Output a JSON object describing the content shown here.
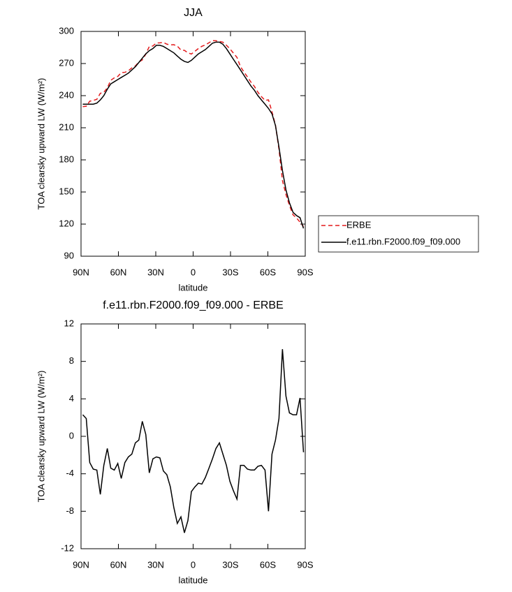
{
  "chart_data": [
    {
      "type": "line",
      "title": "JJA",
      "xlabel": "latitude",
      "ylabel": "TOA clearsky upward LW (W/m²)",
      "x": [
        88.6,
        85.8,
        83.0,
        80.2,
        77.3,
        74.5,
        71.7,
        68.9,
        66.1,
        63.3,
        60.5,
        57.7,
        54.8,
        52.0,
        49.2,
        46.4,
        43.6,
        40.8,
        38.0,
        35.2,
        32.3,
        29.5,
        26.7,
        23.9,
        21.1,
        18.3,
        15.5,
        12.7,
        9.8,
        7.0,
        4.2,
        1.4,
        -1.4,
        -4.2,
        -7.0,
        -9.8,
        -12.7,
        -15.5,
        -18.3,
        -21.1,
        -23.9,
        -26.7,
        -29.5,
        -32.3,
        -35.2,
        -38.0,
        -40.8,
        -43.6,
        -46.4,
        -49.2,
        -52.0,
        -54.8,
        -57.7,
        -60.5,
        -63.3,
        -66.1,
        -68.9,
        -71.7,
        -74.5,
        -77.3,
        -80.2,
        -83.0,
        -85.8,
        -88.6
      ],
      "series": [
        {
          "name": "ERBE",
          "color": "#e31a1c",
          "line_style": "dashed",
          "values": [
            229.7,
            230.1,
            234.8,
            235.5,
            236.6,
            242.2,
            243.1,
            247.3,
            254.4,
            256.6,
            257.9,
            261.5,
            261.8,
            263.2,
            265.9,
            267.7,
            271.4,
            273.4,
            278.8,
            285.9,
            286.4,
            289.2,
            289.3,
            289.7,
            288.1,
            287.4,
            287.6,
            286.3,
            282.6,
            282.3,
            280.0,
            278.9,
            281.4,
            284.0,
            286.1,
            287.4,
            289.4,
            291.4,
            291.3,
            290.7,
            289.9,
            287.1,
            283.8,
            279.8,
            275.7,
            267.1,
            262.1,
            257.5,
            252.6,
            248.6,
            243.2,
            239.1,
            235.6,
            236.0,
            224.9,
            212.4,
            190.1,
            160.7,
            147.7,
            137.5,
            128.7,
            125.7,
            121.9,
            117.7
          ]
        },
        {
          "name": "f.e11.rbn.F2000.f09_f09.000",
          "color": "#000000",
          "line_style": "solid",
          "values": [
            232,
            232,
            232,
            232,
            233,
            236,
            240,
            246,
            251,
            253,
            255,
            257,
            259,
            261,
            264,
            267,
            271,
            275,
            279,
            282,
            284,
            287,
            287,
            286,
            284,
            282,
            280,
            277,
            274,
            272,
            271,
            273,
            276,
            279,
            281,
            283,
            286,
            289,
            290,
            290,
            288,
            284,
            279,
            274,
            269,
            264,
            259,
            254,
            249,
            245,
            240,
            236,
            232,
            228,
            223,
            212,
            192,
            170,
            152,
            140,
            131,
            128,
            126,
            116
          ]
        }
      ],
      "xlim": [
        90,
        -90
      ],
      "xticks": [
        {
          "value": 90,
          "label": "90N"
        },
        {
          "value": 60,
          "label": "60N"
        },
        {
          "value": 30,
          "label": "30N"
        },
        0,
        {
          "value": -30,
          "label": "30S"
        },
        {
          "value": -60,
          "label": "60S"
        },
        {
          "value": -90,
          "label": "90S"
        }
      ],
      "ylim": [
        90,
        300
      ],
      "yticks": [
        90,
        120,
        150,
        180,
        210,
        240,
        270,
        300
      ],
      "legend_position": "right"
    },
    {
      "type": "line",
      "title": "f.e11.rbn.F2000.f09_f09.000 - ERBE",
      "xlabel": "latitude",
      "ylabel": "TOA clearsky upward LW (W/m²)",
      "x": [
        88.6,
        85.8,
        83.0,
        80.2,
        77.3,
        74.5,
        71.7,
        68.9,
        66.1,
        63.3,
        60.5,
        57.7,
        54.8,
        52.0,
        49.2,
        46.4,
        43.6,
        40.8,
        38.0,
        35.2,
        32.3,
        29.5,
        26.7,
        23.9,
        21.1,
        18.3,
        15.5,
        12.7,
        9.8,
        7.0,
        4.2,
        1.4,
        -1.4,
        -4.2,
        -7.0,
        -9.8,
        -12.7,
        -15.5,
        -18.3,
        -21.1,
        -23.9,
        -26.7,
        -29.5,
        -32.3,
        -35.2,
        -38.0,
        -40.8,
        -43.6,
        -46.4,
        -49.2,
        -52.0,
        -54.8,
        -57.7,
        -60.5,
        -63.3,
        -66.1,
        -68.9,
        -71.7,
        -74.5,
        -77.3,
        -80.2,
        -83.0,
        -85.8,
        -88.6
      ],
      "series": [
        {
          "color": "#000000",
          "line_style": "solid",
          "values": [
            2.3,
            1.9,
            -2.8,
            -3.5,
            -3.6,
            -6.2,
            -3.1,
            -1.3,
            -3.4,
            -3.6,
            -2.9,
            -4.5,
            -2.8,
            -2.2,
            -1.9,
            -0.7,
            -0.4,
            1.6,
            0.2,
            -3.9,
            -2.4,
            -2.2,
            -2.3,
            -3.7,
            -4.1,
            -5.4,
            -7.6,
            -9.3,
            -8.6,
            -10.3,
            -9.0,
            -5.9,
            -5.4,
            -5.0,
            -5.1,
            -4.4,
            -3.4,
            -2.4,
            -1.3,
            -0.7,
            -1.9,
            -3.1,
            -4.8,
            -5.8,
            -6.7,
            -3.1,
            -3.1,
            -3.5,
            -3.6,
            -3.6,
            -3.2,
            -3.1,
            -3.6,
            -8.0,
            -1.9,
            -0.4,
            1.9,
            9.3,
            4.3,
            2.5,
            2.3,
            2.3,
            4.1,
            -1.7
          ]
        }
      ],
      "xlim": [
        90,
        -90
      ],
      "xticks": [
        {
          "value": 90,
          "label": "90N"
        },
        {
          "value": 60,
          "label": "60N"
        },
        {
          "value": 30,
          "label": "30N"
        },
        0,
        {
          "value": -30,
          "label": "30S"
        },
        {
          "value": -60,
          "label": "60S"
        },
        {
          "value": -90,
          "label": "90S"
        }
      ],
      "ylim": [
        -12,
        12
      ],
      "yticks": [
        -12,
        -8,
        -4,
        0,
        4,
        8,
        12
      ]
    }
  ]
}
